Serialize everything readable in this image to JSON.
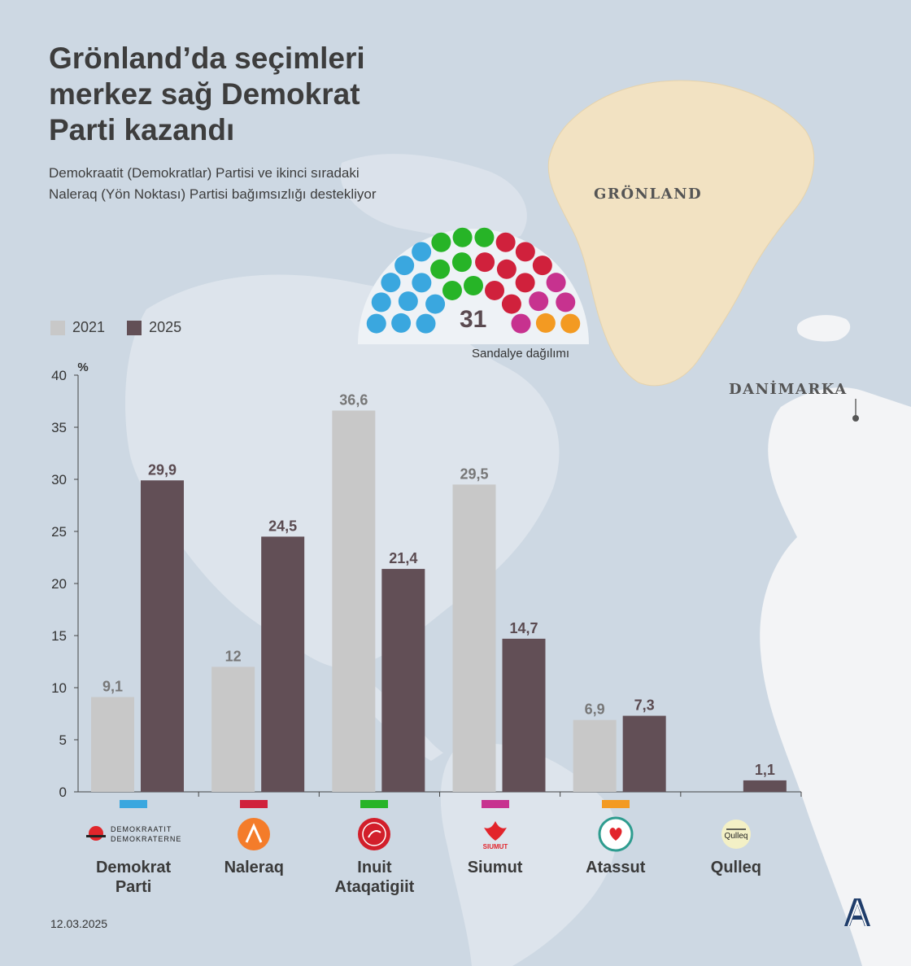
{
  "title": "Grönland’da seçimleri merkez sağ Demokrat Parti kazandı",
  "subtitle": "Demokraatit (Demokratlar) Partisi ve ikinci sıradaki Naleraq (Yön Noktası) Partisi bağımsızlığı destekliyor",
  "map_labels": {
    "greenland": "GRÖNLAND",
    "denmark": "DANİMARKA"
  },
  "date": "12.03.2025",
  "seat_chart": {
    "total": "31",
    "label": "Sandalye dağılımı",
    "parties": [
      {
        "name": "Demokrat Parti",
        "seats": 10,
        "color": "#3aa7df"
      },
      {
        "name": "Inuit Ataqatigiit",
        "seats": 7,
        "color": "#27b427"
      },
      {
        "name": "Naleraq",
        "seats": 8,
        "color": "#d0213c"
      },
      {
        "name": "Siumut",
        "seats": 4,
        "color": "#c7328f"
      },
      {
        "name": "Atassut",
        "seats": 2,
        "color": "#f39a22"
      }
    ]
  },
  "chart_data": {
    "type": "bar",
    "categories": [
      "Demokrat\nParti",
      "Naleraq",
      "Inuit\nAtaqatigiit",
      "Siumut",
      "Atassut",
      "Qulleq"
    ],
    "series": [
      {
        "name": "2021",
        "values": [
          9.1,
          12,
          36.6,
          29.5,
          6.9,
          null
        ],
        "labels": [
          "9,1",
          "12",
          "36,6",
          "29,5",
          "6,9",
          ""
        ],
        "color": "#c8c8c8"
      },
      {
        "name": "2025",
        "values": [
          29.9,
          24.5,
          21.4,
          14.7,
          7.3,
          1.1
        ],
        "labels": [
          "29,9",
          "24,5",
          "21,4",
          "14,7",
          "7,3",
          "1,1"
        ],
        "color": "#624f56"
      }
    ],
    "ylim": [
      0,
      40
    ],
    "yticks": [
      "0",
      "5",
      "10",
      "15",
      "20",
      "25",
      "30",
      "35",
      "40"
    ],
    "yunit": "%",
    "legend": "top-left",
    "grid": false
  },
  "parties": [
    {
      "name": "Demokrat Parti",
      "color": "#3aa7df",
      "logo": "demokraatit-logo",
      "logo_text": [
        "DEMOKRAATIT",
        "DEMOKRATERNE"
      ]
    },
    {
      "name": "Naleraq",
      "color": "#d0213c",
      "logo": "naleraq-logo"
    },
    {
      "name": "Inuit Ataqatigiit",
      "color": "#27b427",
      "logo": "inuit-ataqatigiit-logo"
    },
    {
      "name": "Siumut",
      "color": "#c7328f",
      "logo": "siumut-logo",
      "logo_text": [
        "SIUMUT"
      ]
    },
    {
      "name": "Atassut",
      "color": "#f39a22",
      "logo": "atassut-logo"
    },
    {
      "name": "Qulleq",
      "color": "#ffffff",
      "logo": "qulleq-logo",
      "logo_text": [
        "Qulleq"
      ]
    }
  ],
  "colors": {
    "bar_2021": "#c8c8c8",
    "bar_2025": "#624f56",
    "background": "#cdd8e3",
    "land": "#e3e8ee",
    "greenland": "#f2e2c2"
  }
}
